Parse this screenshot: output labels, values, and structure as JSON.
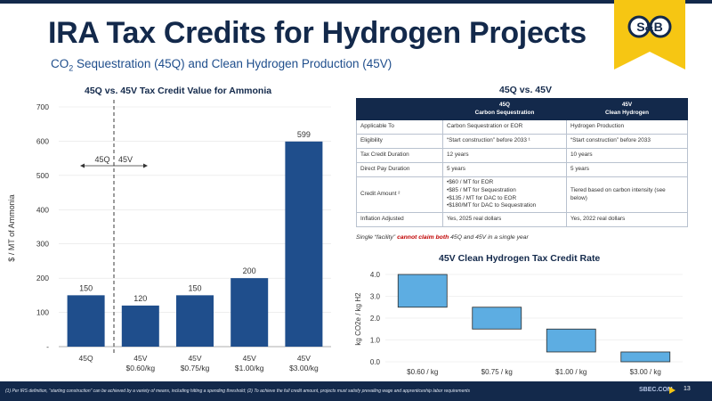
{
  "slide": {
    "title": "IRA Tax Credits for Hydrogen Projects",
    "subtitle_co": "CO",
    "subtitle_sub": "2",
    "subtitle_rest": " Sequestration (45Q) and Clean Hydrogen Production (45V)",
    "logo_text": "S&B",
    "page_number": "13",
    "footer_link": "SBEC.COM",
    "footnote": "(1) Per IRS definition, “starting construction” can be achieved by a variety of means, including hitting a spending threshold; (2) To achieve the full credit amount, projects must satisfy prevailing wage and apprenticeship labor requirements",
    "colors": {
      "navy": "#13294b",
      "bar_blue": "#1f4e8c",
      "light_blue": "#5dade2",
      "accent_yellow": "#f6c613",
      "red": "#c00000"
    }
  },
  "ammonia_chart": {
    "title": "45Q vs. 45V Tax Credit Value for Ammonia",
    "divider_labels": [
      "45Q",
      "45V"
    ],
    "chart_data": {
      "type": "bar",
      "title": "45Q vs. 45V Tax Credit Value for Ammonia",
      "ylabel": "$ / MT of Ammonia",
      "xlabel": "",
      "ylim": [
        0,
        700
      ],
      "yticks": [
        0,
        100,
        200,
        300,
        400,
        500,
        600,
        700
      ],
      "ytick_labels": [
        "-",
        "100",
        "200",
        "300",
        "400",
        "500",
        "600",
        "700"
      ],
      "categories": [
        [
          "45Q"
        ],
        [
          "45V",
          "$0.60/kg"
        ],
        [
          "45V",
          "$0.75/kg"
        ],
        [
          "45V",
          "$1.00/kg"
        ],
        [
          "45V",
          "$3.00/kg"
        ]
      ],
      "values": [
        150,
        120,
        150,
        200,
        599
      ],
      "data_labels": [
        "150",
        "120",
        "150",
        "200",
        "599"
      ]
    }
  },
  "comparison": {
    "title": "45Q vs. 45V",
    "headers": [
      {
        "line1": "",
        "line2": ""
      },
      {
        "line1": "45Q",
        "line2": "Carbon Sequestration"
      },
      {
        "line1": "45V",
        "line2": "Clean Hydrogen"
      }
    ],
    "rows": [
      {
        "label": "Applicable To",
        "q45": "Carbon Sequestration or EOR",
        "v45": "Hydrogen Production"
      },
      {
        "label": "Eligibility",
        "q45": "“Start construction” before 2033 ¹",
        "v45": "“Start construction” before 2033"
      },
      {
        "label": "Tax Credit Duration",
        "q45": "12 years",
        "v45": "10 years"
      },
      {
        "label": "Direct Pay Duration",
        "q45": "5 years",
        "v45": "5 years"
      },
      {
        "label": "Credit Amount ²",
        "q45_list": [
          "$60 / MT for EOR",
          "$85 / MT for Sequestration",
          "$135 / MT for DAC to EOR",
          "$180/MT for DAC to Sequestration"
        ],
        "v45": "Tiered based on carbon intensity (see below)"
      },
      {
        "label": "Inflation Adjusted",
        "q45": "Yes, 2025 real dollars",
        "v45": "Yes, 2022 real dollars"
      }
    ],
    "note_prefix": "Single “facility” ",
    "note_red": "cannot claim both",
    "note_suffix": " 45Q and 45V in a single year"
  },
  "hydrogen_chart": {
    "title": "45V Clean Hydrogen Tax Credit Rate",
    "chart_data": {
      "type": "floating-bar",
      "title": "45V Clean Hydrogen Tax Credit Rate",
      "ylabel": "kg CO2e / kg H2",
      "xlabel": "",
      "ylim": [
        0,
        4
      ],
      "yticks": [
        0,
        1,
        2,
        3,
        4
      ],
      "ytick_labels": [
        "0.0",
        "1.0",
        "2.0",
        "3.0",
        "4.0"
      ],
      "categories": [
        "$0.60 / kg",
        "$0.75 / kg",
        "$1.00 / kg",
        "$3.00 / kg"
      ],
      "ranges": [
        [
          2.5,
          4.0
        ],
        [
          1.5,
          2.5
        ],
        [
          0.45,
          1.5
        ],
        [
          0.0,
          0.45
        ]
      ]
    }
  }
}
